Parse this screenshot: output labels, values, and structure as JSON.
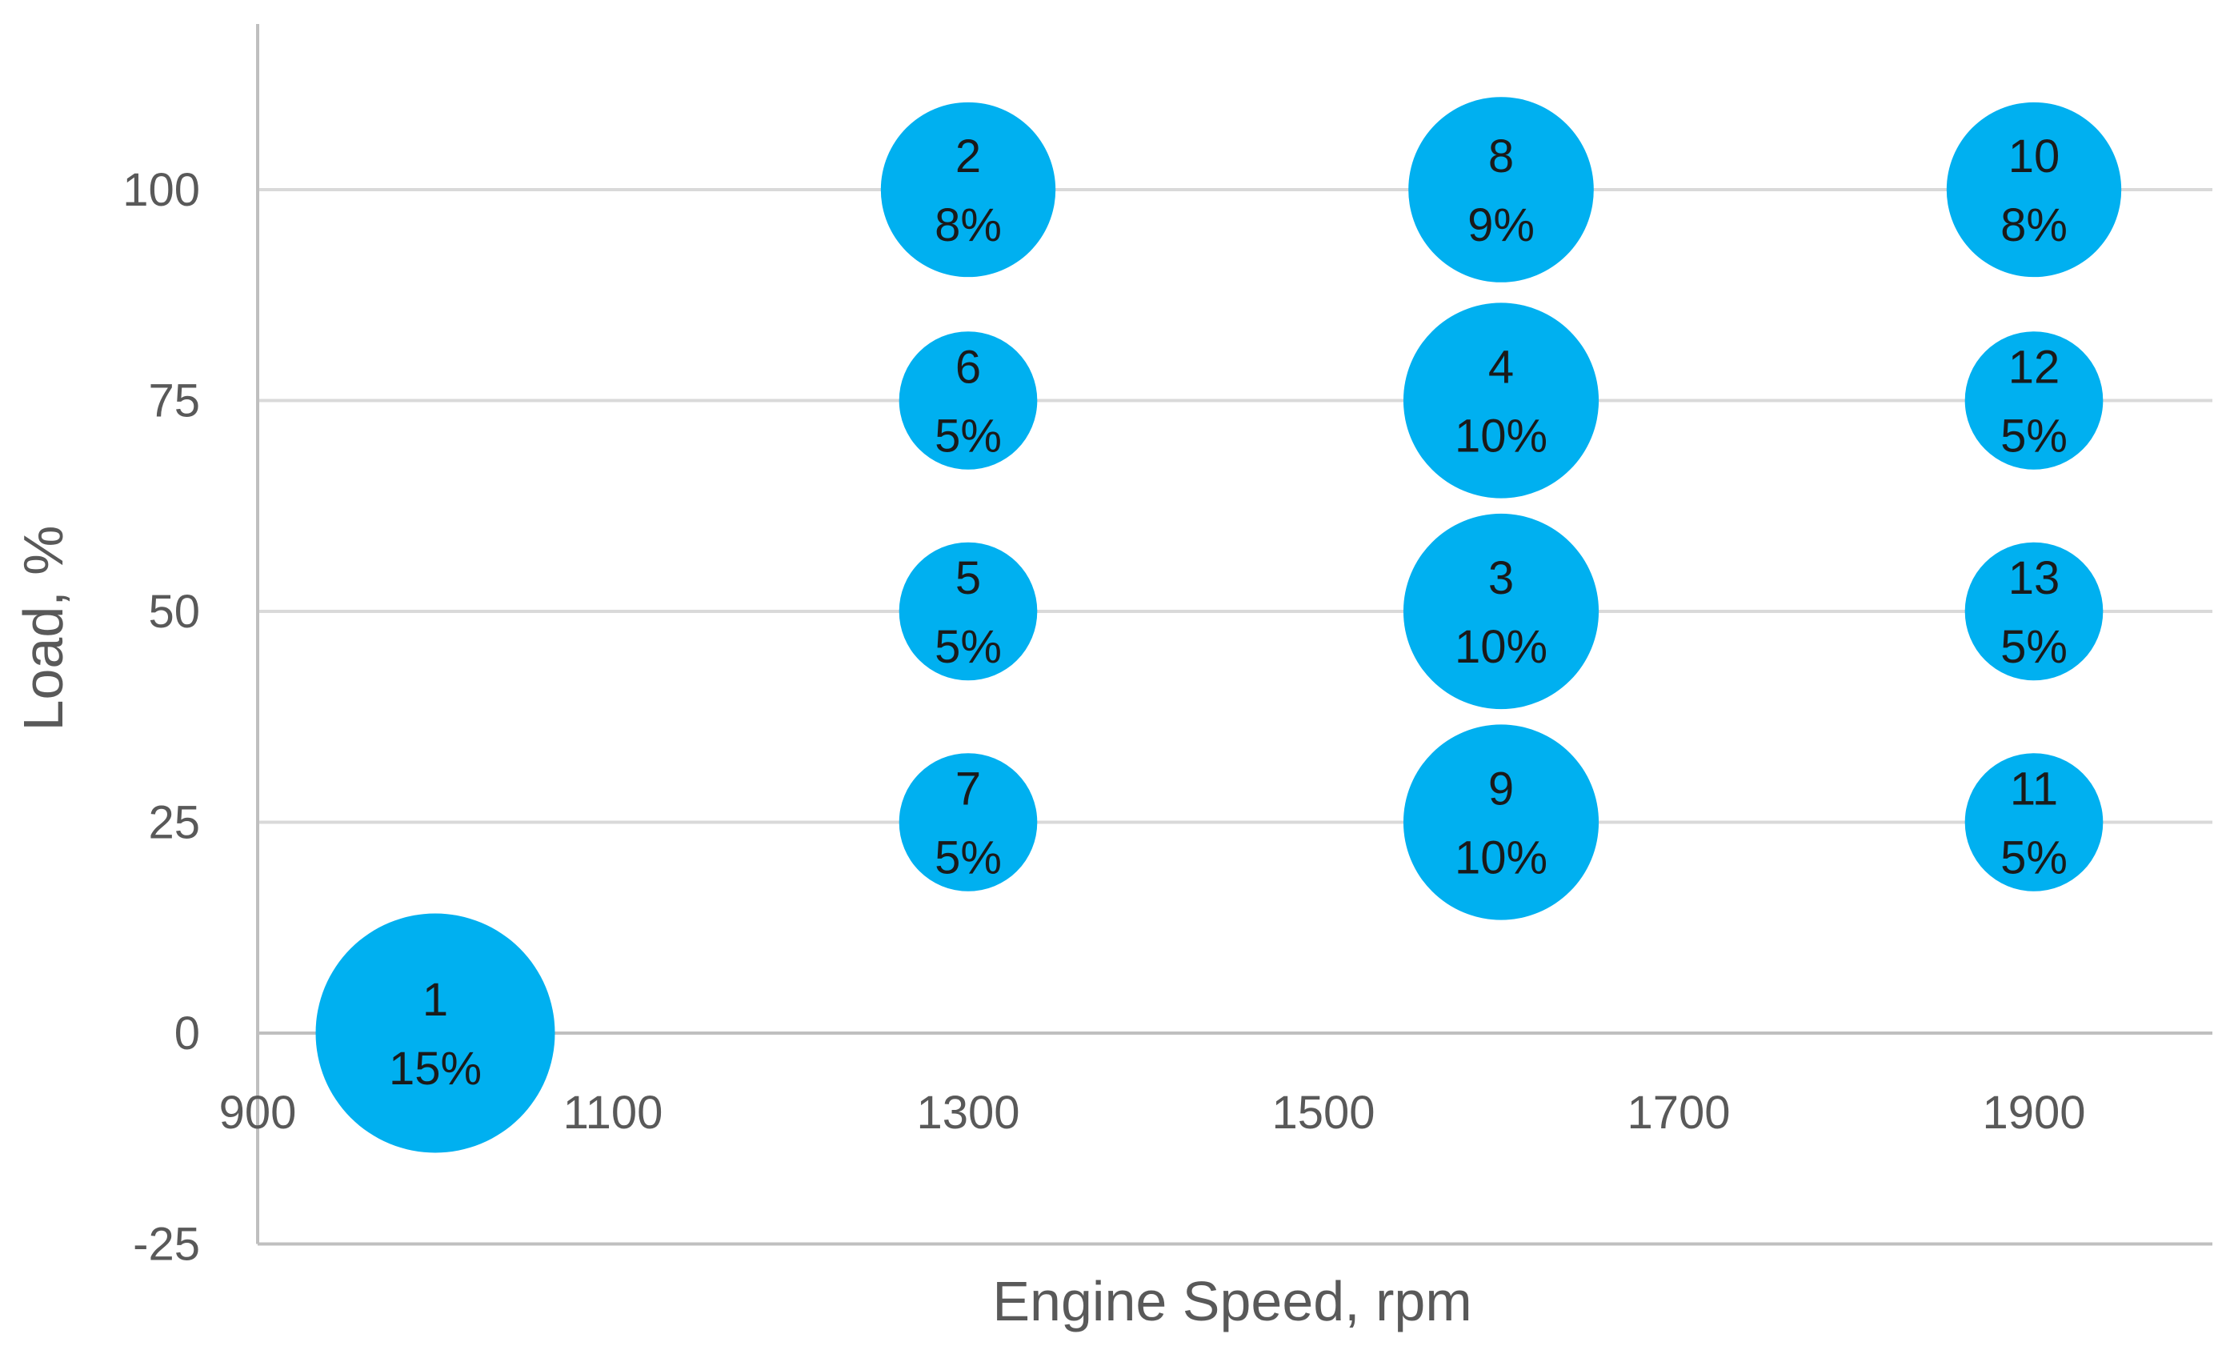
{
  "chart_data": {
    "type": "bubble",
    "xlabel": "Engine Speed, rpm",
    "ylabel": "Load, %",
    "xlim": [
      900,
      2050
    ],
    "ylim": [
      -25,
      120
    ],
    "x_ticks": [
      900,
      1100,
      1300,
      1500,
      1700,
      1900
    ],
    "y_ticks": [
      -25,
      0,
      25,
      50,
      75,
      100
    ],
    "x_tick_labels": [
      "900",
      "1100",
      "1300",
      "1500",
      "1700",
      "1900"
    ],
    "y_tick_labels": [
      "-25",
      "0",
      "25",
      "50",
      "75",
      "100"
    ],
    "grid": "horizontal",
    "legend": "none",
    "bubble_color": "#00B0F0",
    "points": [
      {
        "id": "1",
        "x": 1000,
        "y": 0,
        "weight": 15,
        "weight_label": "15%"
      },
      {
        "id": "2",
        "x": 1300,
        "y": 100,
        "weight": 8,
        "weight_label": "8%"
      },
      {
        "id": "3",
        "x": 1600,
        "y": 50,
        "weight": 10,
        "weight_label": "10%"
      },
      {
        "id": "4",
        "x": 1600,
        "y": 75,
        "weight": 10,
        "weight_label": "10%"
      },
      {
        "id": "5",
        "x": 1300,
        "y": 50,
        "weight": 5,
        "weight_label": "5%"
      },
      {
        "id": "6",
        "x": 1300,
        "y": 75,
        "weight": 5,
        "weight_label": "5%"
      },
      {
        "id": "7",
        "x": 1300,
        "y": 25,
        "weight": 5,
        "weight_label": "5%"
      },
      {
        "id": "8",
        "x": 1600,
        "y": 100,
        "weight": 9,
        "weight_label": "9%"
      },
      {
        "id": "9",
        "x": 1600,
        "y": 25,
        "weight": 10,
        "weight_label": "10%"
      },
      {
        "id": "10",
        "x": 1900,
        "y": 100,
        "weight": 8,
        "weight_label": "8%"
      },
      {
        "id": "11",
        "x": 1900,
        "y": 25,
        "weight": 5,
        "weight_label": "5%"
      },
      {
        "id": "12",
        "x": 1900,
        "y": 75,
        "weight": 5,
        "weight_label": "5%"
      },
      {
        "id": "13",
        "x": 1900,
        "y": 50,
        "weight": 5,
        "weight_label": "5%"
      }
    ]
  }
}
